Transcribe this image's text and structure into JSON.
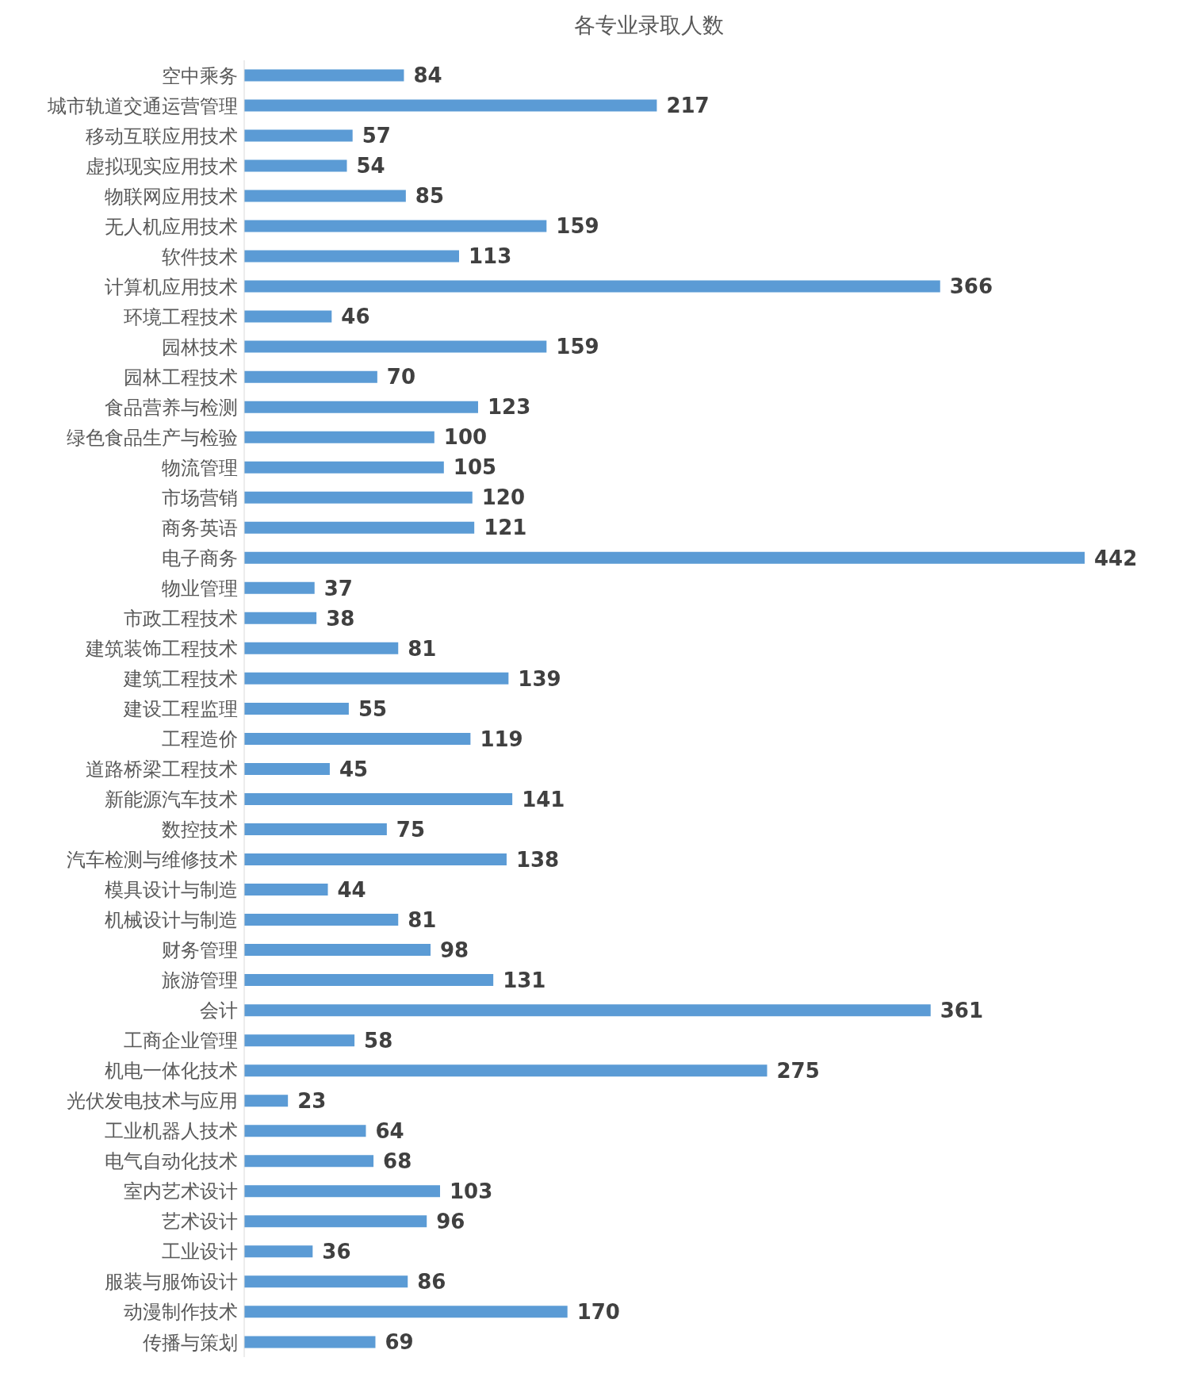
{
  "chart_data": {
    "type": "bar",
    "orientation": "horizontal",
    "title": "各专业录取人数",
    "data_labels": true,
    "categories": [
      "空中乘务",
      "城市轨道交通运营管理",
      "移动互联应用技术",
      "虚拟现实应用技术",
      "物联网应用技术",
      "无人机应用技术",
      "软件技术",
      "计算机应用技术",
      "环境工程技术",
      "园林技术",
      "园林工程技术",
      "食品营养与检测",
      "绿色食品生产与检验",
      "物流管理",
      "市场营销",
      "商务英语",
      "电子商务",
      "物业管理",
      "市政工程技术",
      "建筑装饰工程技术",
      "建筑工程技术",
      "建设工程监理",
      "工程造价",
      "道路桥梁工程技术",
      "新能源汽车技术",
      "数控技术",
      "汽车检测与维修技术",
      "模具设计与制造",
      "机械设计与制造",
      "财务管理",
      "旅游管理",
      "会计",
      "工商企业管理",
      "机电一体化技术",
      "光伏发电技术与应用",
      "工业机器人技术",
      "电气自动化技术",
      "室内艺术设计",
      "艺术设计",
      "工业设计",
      "服装与服饰设计",
      "动漫制作技术",
      "传播与策划"
    ],
    "values": [
      84,
      217,
      57,
      54,
      85,
      159,
      113,
      366,
      46,
      159,
      70,
      123,
      100,
      105,
      120,
      121,
      442,
      37,
      38,
      81,
      139,
      55,
      119,
      45,
      141,
      75,
      138,
      44,
      81,
      98,
      131,
      361,
      58,
      275,
      23,
      64,
      68,
      103,
      96,
      36,
      86,
      170,
      69
    ],
    "color": "#5b9bd5"
  }
}
